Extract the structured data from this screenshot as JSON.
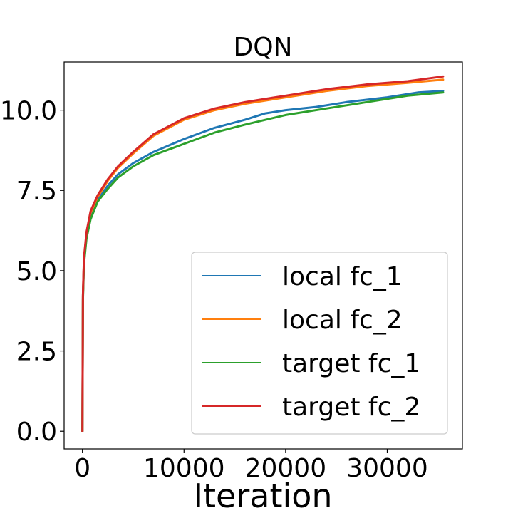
{
  "chart_data": {
    "type": "line",
    "title": "DQN",
    "xlabel": "Iteration",
    "ylabel": "",
    "xlim": [
      -1800,
      37400
    ],
    "ylim": [
      -0.55,
      11.5
    ],
    "xticks": [
      0,
      10000,
      20000,
      30000
    ],
    "xtick_labels": [
      "0",
      "10000",
      "20000",
      "30000"
    ],
    "yticks": [
      0.0,
      2.5,
      5.0,
      7.5,
      10.0
    ],
    "ytick_labels": [
      "0.0",
      "2.5",
      "5.0",
      "7.5",
      "10.0"
    ],
    "grid": false,
    "legend_placement": "lower right",
    "series": [
      {
        "name": "local fc_1",
        "color": "#1f77b4",
        "points": [
          [
            0,
            0.0
          ],
          [
            50,
            4.2
          ],
          [
            150,
            5.3
          ],
          [
            400,
            6.1
          ],
          [
            800,
            6.7
          ],
          [
            1500,
            7.2
          ],
          [
            2500,
            7.65
          ],
          [
            3500,
            8.0
          ],
          [
            5000,
            8.35
          ],
          [
            7000,
            8.7
          ],
          [
            10000,
            9.1
          ],
          [
            13000,
            9.45
          ],
          [
            16000,
            9.7
          ],
          [
            18000,
            9.9
          ],
          [
            20000,
            10.0
          ],
          [
            23000,
            10.1
          ],
          [
            26000,
            10.25
          ],
          [
            30000,
            10.4
          ],
          [
            33000,
            10.55
          ],
          [
            35500,
            10.6
          ]
        ]
      },
      {
        "name": "local fc_2",
        "color": "#ff7f0e",
        "points": [
          [
            0,
            0.0
          ],
          [
            50,
            4.2
          ],
          [
            150,
            5.35
          ],
          [
            400,
            6.15
          ],
          [
            800,
            6.8
          ],
          [
            1500,
            7.3
          ],
          [
            2500,
            7.8
          ],
          [
            3500,
            8.2
          ],
          [
            5000,
            8.65
          ],
          [
            7000,
            9.2
          ],
          [
            10000,
            9.7
          ],
          [
            13000,
            10.0
          ],
          [
            16000,
            10.2
          ],
          [
            20000,
            10.4
          ],
          [
            24000,
            10.6
          ],
          [
            28000,
            10.75
          ],
          [
            32000,
            10.85
          ],
          [
            35500,
            10.95
          ]
        ]
      },
      {
        "name": "target fc_1",
        "color": "#2ca02c",
        "points": [
          [
            0,
            0.0
          ],
          [
            50,
            4.1
          ],
          [
            150,
            5.2
          ],
          [
            400,
            6.0
          ],
          [
            800,
            6.6
          ],
          [
            1500,
            7.15
          ],
          [
            2500,
            7.55
          ],
          [
            3500,
            7.9
          ],
          [
            5000,
            8.25
          ],
          [
            7000,
            8.6
          ],
          [
            10000,
            8.95
          ],
          [
            13000,
            9.3
          ],
          [
            16000,
            9.55
          ],
          [
            20000,
            9.85
          ],
          [
            24000,
            10.05
          ],
          [
            28000,
            10.25
          ],
          [
            32000,
            10.45
          ],
          [
            35500,
            10.55
          ]
        ]
      },
      {
        "name": "target fc_2",
        "color": "#d62728",
        "points": [
          [
            0,
            0.0
          ],
          [
            50,
            4.25
          ],
          [
            150,
            5.4
          ],
          [
            400,
            6.2
          ],
          [
            800,
            6.85
          ],
          [
            1500,
            7.35
          ],
          [
            2500,
            7.85
          ],
          [
            3500,
            8.25
          ],
          [
            5000,
            8.7
          ],
          [
            7000,
            9.25
          ],
          [
            10000,
            9.75
          ],
          [
            13000,
            10.05
          ],
          [
            16000,
            10.25
          ],
          [
            20000,
            10.45
          ],
          [
            24000,
            10.65
          ],
          [
            28000,
            10.8
          ],
          [
            32000,
            10.9
          ],
          [
            35500,
            11.05
          ]
        ]
      }
    ]
  }
}
